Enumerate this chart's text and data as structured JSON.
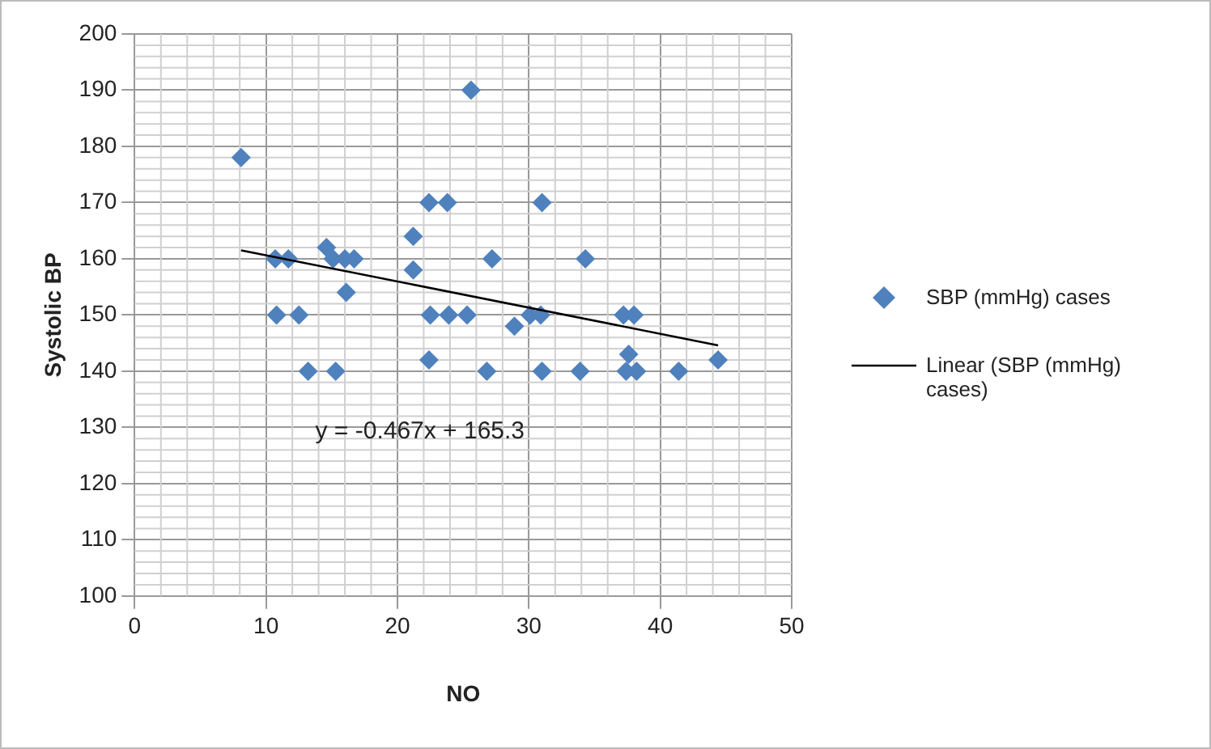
{
  "chart_data": {
    "type": "scatter",
    "xlabel": "NO",
    "ylabel": "Systolic BP",
    "series": [
      {
        "name": "SBP (mmHg) cases",
        "color": "#4f81bd",
        "marker": "diamond",
        "x": [
          8.1,
          10.7,
          11.7,
          10.8,
          12.5,
          13.2,
          14.6,
          15.1,
          15.3,
          16,
          16.1,
          16.7,
          21.2,
          21.2,
          22.4,
          22.5,
          22.4,
          23.8,
          23.9,
          25.3,
          25.6,
          26.8,
          27.2,
          28.9,
          30.1,
          30.9,
          31,
          31,
          33.9,
          34.3,
          37.2,
          38,
          37.6,
          37.4,
          38.2,
          41.4,
          44.4
        ],
        "values": [
          178,
          160,
          160,
          150,
          150,
          140,
          162,
          160,
          140,
          160,
          154,
          160,
          164,
          158,
          170,
          150,
          142,
          170,
          150,
          150,
          190,
          140,
          160,
          148,
          150,
          150,
          170,
          140,
          140,
          160,
          150,
          150,
          143,
          140,
          140,
          140,
          142
        ]
      },
      {
        "name": "Linear (SBP (mmHg) cases)",
        "type": "line",
        "color": "#000000",
        "marker": "none",
        "x": [
          8.1,
          44.4
        ],
        "values": [
          161.5,
          144.6
        ]
      }
    ],
    "xlim": [
      0,
      50
    ],
    "xticks": [
      0,
      10,
      20,
      30,
      40,
      50
    ],
    "ylim": [
      100,
      200
    ],
    "yticks": [
      100,
      110,
      120,
      130,
      140,
      150,
      160,
      170,
      180,
      190,
      200
    ],
    "grid": true,
    "legend": "right",
    "annotations": [
      "y = -0.467x + 165.3"
    ]
  }
}
